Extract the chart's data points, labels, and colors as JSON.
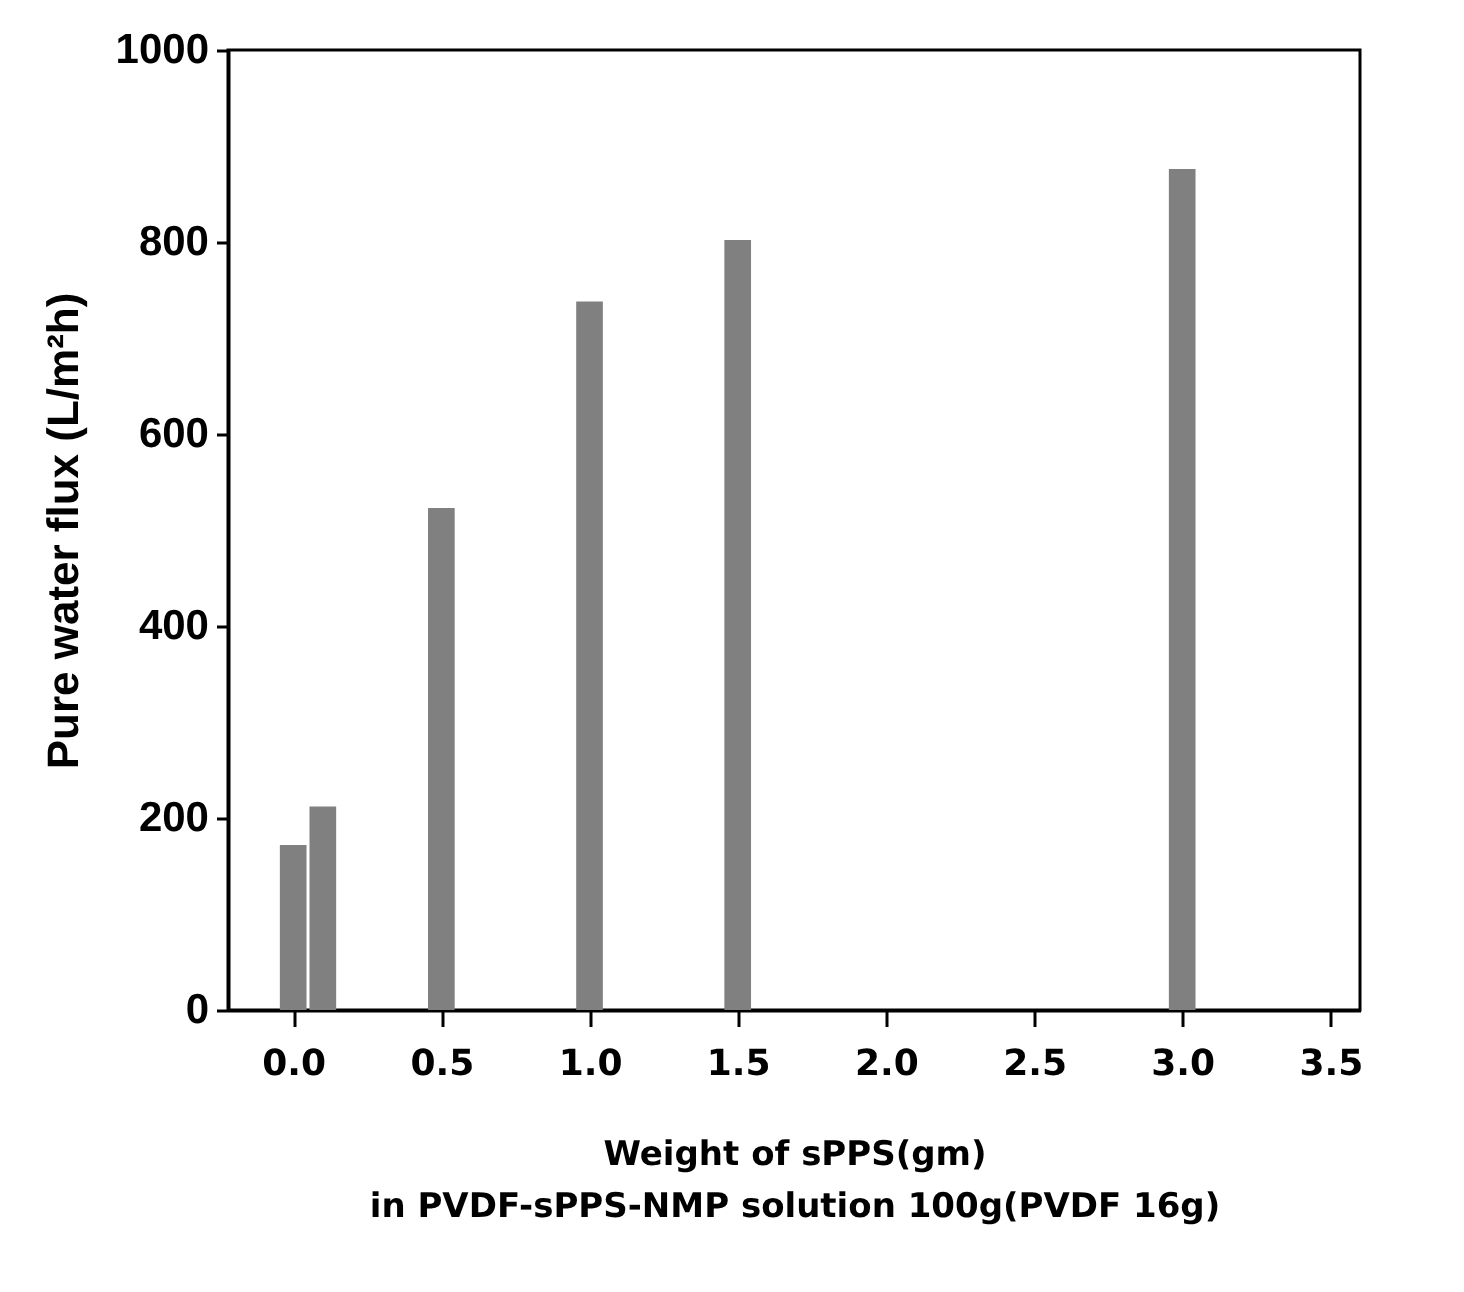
{
  "chart_data": {
    "type": "bar",
    "xlabel": "Weight of sPPS(gm)\nin PVDF-sPPS-NMP solution 100g(PVDF 16g)",
    "ylabel": "Pure water flux (L/m²h)",
    "x": [
      0,
      0.1,
      0.5,
      1.0,
      1.5,
      3.0
    ],
    "values": [
      172,
      212,
      523,
      738,
      802,
      876
    ],
    "color": "#808080",
    "xlim": [
      -0.22,
      3.6
    ],
    "xticks": [
      {
        "value": 0,
        "label": "0.0"
      },
      {
        "value": 0.5,
        "label": "0.5"
      },
      {
        "value": 1,
        "label": "1.0"
      },
      {
        "value": 1.5,
        "label": "1.5"
      },
      {
        "value": 2,
        "label": "2.0"
      },
      {
        "value": 2.5,
        "label": "2.5"
      },
      {
        "value": 3,
        "label": "3.0"
      },
      {
        "value": 3.5,
        "label": "3.5"
      }
    ],
    "ylim": [
      0,
      1000
    ],
    "yticks": [
      0,
      200,
      400,
      600,
      800,
      1000
    ],
    "grid": false
  }
}
